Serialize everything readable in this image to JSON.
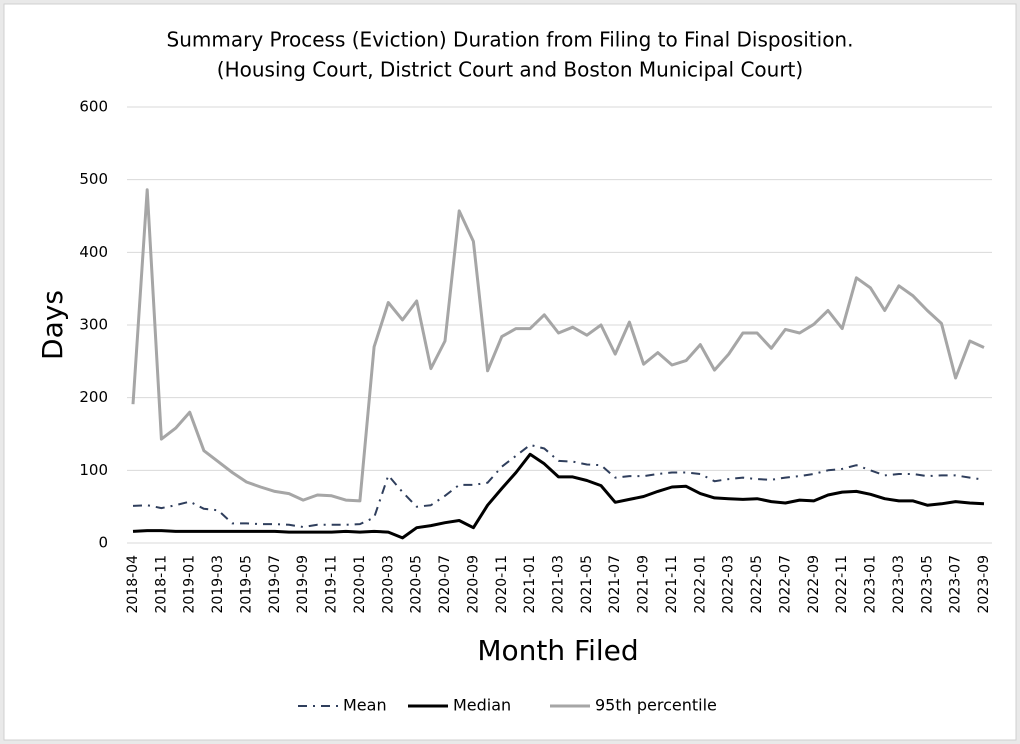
{
  "chart_data": {
    "type": "line",
    "title": [
      "Summary Process (Eviction) Duration from Filing to Final Disposition.",
      "(Housing Court, District Court and Boston Municipal Court)"
    ],
    "x_label": "Month Filed",
    "y_label": "Days",
    "categories": [
      "2018-04",
      null,
      "2018-11",
      null,
      "2019-01",
      null,
      "2019-03",
      null,
      "2019-05",
      null,
      "2019-07",
      null,
      "2019-09",
      null,
      "2019-11",
      null,
      "2020-01",
      null,
      "2020-03",
      null,
      "2020-05",
      null,
      "2020-07",
      null,
      "2020-09",
      null,
      "2020-11",
      null,
      "2021-01",
      null,
      "2021-03",
      null,
      "2021-05",
      null,
      "2021-07",
      null,
      "2021-09",
      null,
      "2021-11",
      null,
      "2022-01",
      null,
      "2022-03",
      null,
      "2022-05",
      null,
      "2022-07",
      null,
      "2022-09",
      null,
      "2022-11",
      null,
      "2023-01",
      null,
      "2023-03",
      null,
      "2023-05",
      null,
      "2023-07",
      null,
      "2023-09"
    ],
    "series": [
      {
        "name": "Mean",
        "color": "#2f3e5c",
        "dash": true,
        "values": [
          51,
          52,
          48,
          52,
          57,
          47,
          45,
          27,
          27,
          26,
          26,
          25,
          22,
          25,
          25,
          25,
          26,
          35,
          93,
          70,
          50,
          52,
          65,
          80,
          80,
          83,
          105,
          120,
          135,
          130,
          113,
          112,
          108,
          107,
          90,
          92,
          92,
          95,
          97,
          97,
          95,
          85,
          88,
          90,
          88,
          87,
          90,
          92,
          95,
          100,
          102,
          107,
          100,
          93,
          95,
          95,
          92,
          93,
          93,
          90,
          87
        ]
      },
      {
        "name": "Median",
        "color": "#000000",
        "values": [
          16,
          17,
          17,
          16,
          16,
          16,
          16,
          16,
          16,
          16,
          16,
          15,
          15,
          15,
          15,
          16,
          15,
          16,
          15,
          7,
          21,
          24,
          28,
          31,
          21,
          52,
          75,
          97,
          122,
          109,
          91,
          91,
          86,
          79,
          56,
          60,
          64,
          71,
          77,
          78,
          68,
          62,
          61,
          60,
          61,
          57,
          55,
          59,
          58,
          66,
          70,
          71,
          67,
          61,
          58,
          58,
          52,
          54,
          57,
          55,
          54
        ]
      },
      {
        "name": "95th percentile",
        "color": "#a6a6a6",
        "values": [
          191,
          486,
          143,
          158,
          180,
          127,
          112,
          97,
          84,
          77,
          71,
          68,
          59,
          66,
          65,
          59,
          58,
          270,
          331,
          307,
          333,
          240,
          278,
          457,
          415,
          237,
          284,
          295,
          295,
          314,
          289,
          297,
          286,
          300,
          260,
          304,
          246,
          262,
          245,
          251,
          273,
          238,
          260,
          289,
          289,
          268,
          294,
          289,
          301,
          320,
          295,
          365,
          351,
          320,
          354,
          340,
          320,
          302,
          227,
          278,
          269
        ]
      }
    ],
    "ylim": [
      0,
      600
    ],
    "yticks": [
      0,
      100,
      200,
      300,
      400,
      500,
      600
    ],
    "grid": true,
    "legend": "bottom"
  }
}
